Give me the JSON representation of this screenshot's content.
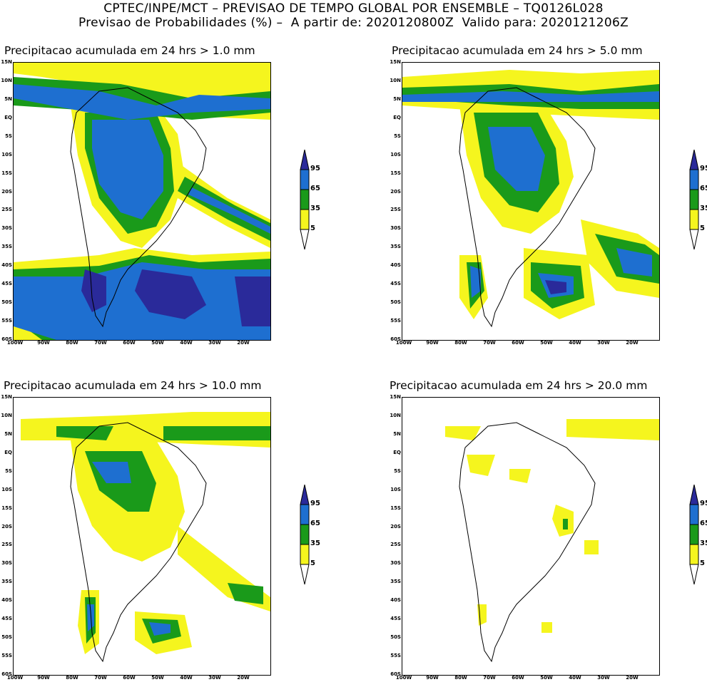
{
  "header": {
    "line1": "CPTEC/INPE/MCT – PREVISAO DE TEMPO GLOBAL POR ENSEMBLE – TQ0126L028",
    "line2": "Previsao de Probabilidades (%) –  A partir de: 2020120800Z  Valido para: 2020121206Z"
  },
  "panels": [
    {
      "title": "Precipitacao acumulada em 24 hrs > 1.0 mm"
    },
    {
      "title": "Precipitacao acumulada em 24 hrs > 5.0 mm"
    },
    {
      "title": "Precipitacao acumulada em 24 hrs > 10.0 mm"
    },
    {
      "title": "Precipitacao acumulada em 24 hrs > 20.0 mm"
    }
  ],
  "axes": {
    "lat_labels": [
      "15N",
      "10N",
      "5N",
      "EQ",
      "5S",
      "10S",
      "15S",
      "20S",
      "25S",
      "30S",
      "35S",
      "40S",
      "45S",
      "50S",
      "55S",
      "60S"
    ],
    "lon_labels": [
      "100W",
      "90W",
      "80W",
      "70W",
      "60W",
      "50W",
      "40W",
      "30W",
      "20W"
    ]
  },
  "colorbar": {
    "labels": [
      "95",
      "65",
      "35",
      "5"
    ],
    "colors": {
      "c95": "#2a2a9a",
      "c65": "#1e6fd0",
      "c35": "#1a9a1a",
      "c5": "#f5f51e"
    }
  }
}
